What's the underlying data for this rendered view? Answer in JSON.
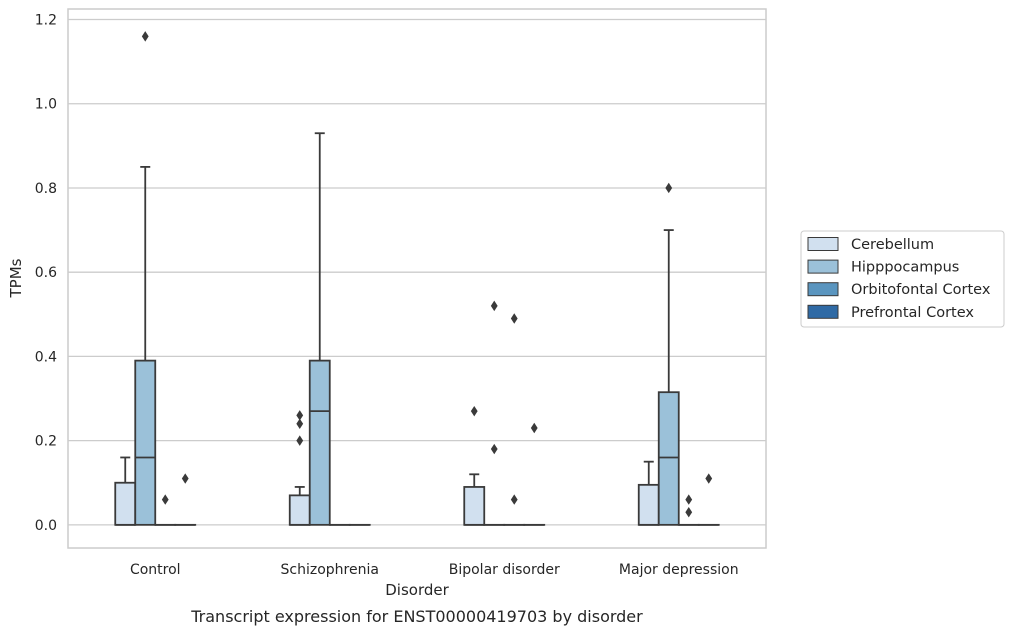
{
  "chart_data": {
    "type": "boxplot",
    "title": "",
    "caption": "Transcript expression for ENST00000419703 by disorder",
    "xlabel": "Disorder",
    "ylabel": "TPMs",
    "ylim": [
      -0.055,
      1.225
    ],
    "yticks": [
      "0.0",
      "0.2",
      "0.4",
      "0.6",
      "0.8",
      "1.0",
      "1.2"
    ],
    "ytick_values": [
      0,
      0.2,
      0.4,
      0.6,
      0.8,
      1.0,
      1.2
    ],
    "grid": "horizontal",
    "legend_position": "right",
    "categories": [
      "Control",
      "Schizophrenia",
      "Bipolar disorder",
      "Major depression"
    ],
    "series": [
      {
        "name": "Cerebellum",
        "color": "#d1e0ef",
        "boxes": [
          {
            "q1": 0,
            "median": 0,
            "q3": 0.1,
            "whisker_low": 0,
            "whisker_high": 0.16,
            "outliers": []
          },
          {
            "q1": 0,
            "median": 0,
            "q3": 0.07,
            "whisker_low": 0,
            "whisker_high": 0.09,
            "outliers": [
              0.2,
              0.24,
              0.26
            ]
          },
          {
            "q1": 0,
            "median": 0,
            "q3": 0.09,
            "whisker_low": 0,
            "whisker_high": 0.12,
            "outliers": [
              0.27
            ]
          },
          {
            "q1": 0,
            "median": 0,
            "q3": 0.095,
            "whisker_low": 0,
            "whisker_high": 0.15,
            "outliers": []
          }
        ]
      },
      {
        "name": "Hipppocampus",
        "color": "#9bc1d9",
        "boxes": [
          {
            "q1": 0,
            "median": 0.16,
            "q3": 0.39,
            "whisker_low": 0,
            "whisker_high": 0.85,
            "outliers": [
              1.16
            ]
          },
          {
            "q1": 0,
            "median": 0.27,
            "q3": 0.39,
            "whisker_low": 0,
            "whisker_high": 0.93,
            "outliers": []
          },
          {
            "q1": 0,
            "median": 0,
            "q3": 0,
            "whisker_low": 0,
            "whisker_high": 0,
            "outliers": [
              0.18,
              0.52
            ]
          },
          {
            "q1": 0,
            "median": 0.16,
            "q3": 0.315,
            "whisker_low": 0,
            "whisker_high": 0.7,
            "outliers": [
              0.8
            ]
          }
        ]
      },
      {
        "name": "Orbitofontal Cortex",
        "color": "#5a95bf",
        "boxes": [
          {
            "q1": 0,
            "median": 0,
            "q3": 0,
            "whisker_low": 0,
            "whisker_high": 0,
            "outliers": [
              0.06
            ]
          },
          {
            "q1": 0,
            "median": 0,
            "q3": 0,
            "whisker_low": 0,
            "whisker_high": 0,
            "outliers": []
          },
          {
            "q1": 0,
            "median": 0,
            "q3": 0,
            "whisker_low": 0,
            "whisker_high": 0,
            "outliers": [
              0.06,
              0.49
            ]
          },
          {
            "q1": 0,
            "median": 0,
            "q3": 0,
            "whisker_low": 0,
            "whisker_high": 0,
            "outliers": [
              0.03,
              0.06
            ]
          }
        ]
      },
      {
        "name": "Prefrontal Cortex",
        "color": "#2f6aa5",
        "boxes": [
          {
            "q1": 0,
            "median": 0,
            "q3": 0,
            "whisker_low": 0,
            "whisker_high": 0,
            "outliers": [
              0.11
            ]
          },
          {
            "q1": 0,
            "median": 0,
            "q3": 0,
            "whisker_low": 0,
            "whisker_high": 0,
            "outliers": []
          },
          {
            "q1": 0,
            "median": 0,
            "q3": 0,
            "whisker_low": 0,
            "whisker_high": 0,
            "outliers": [
              0.23
            ]
          },
          {
            "q1": 0,
            "median": 0,
            "q3": 0,
            "whisker_low": 0,
            "whisker_high": 0,
            "outliers": [
              0.11
            ]
          }
        ]
      }
    ]
  }
}
